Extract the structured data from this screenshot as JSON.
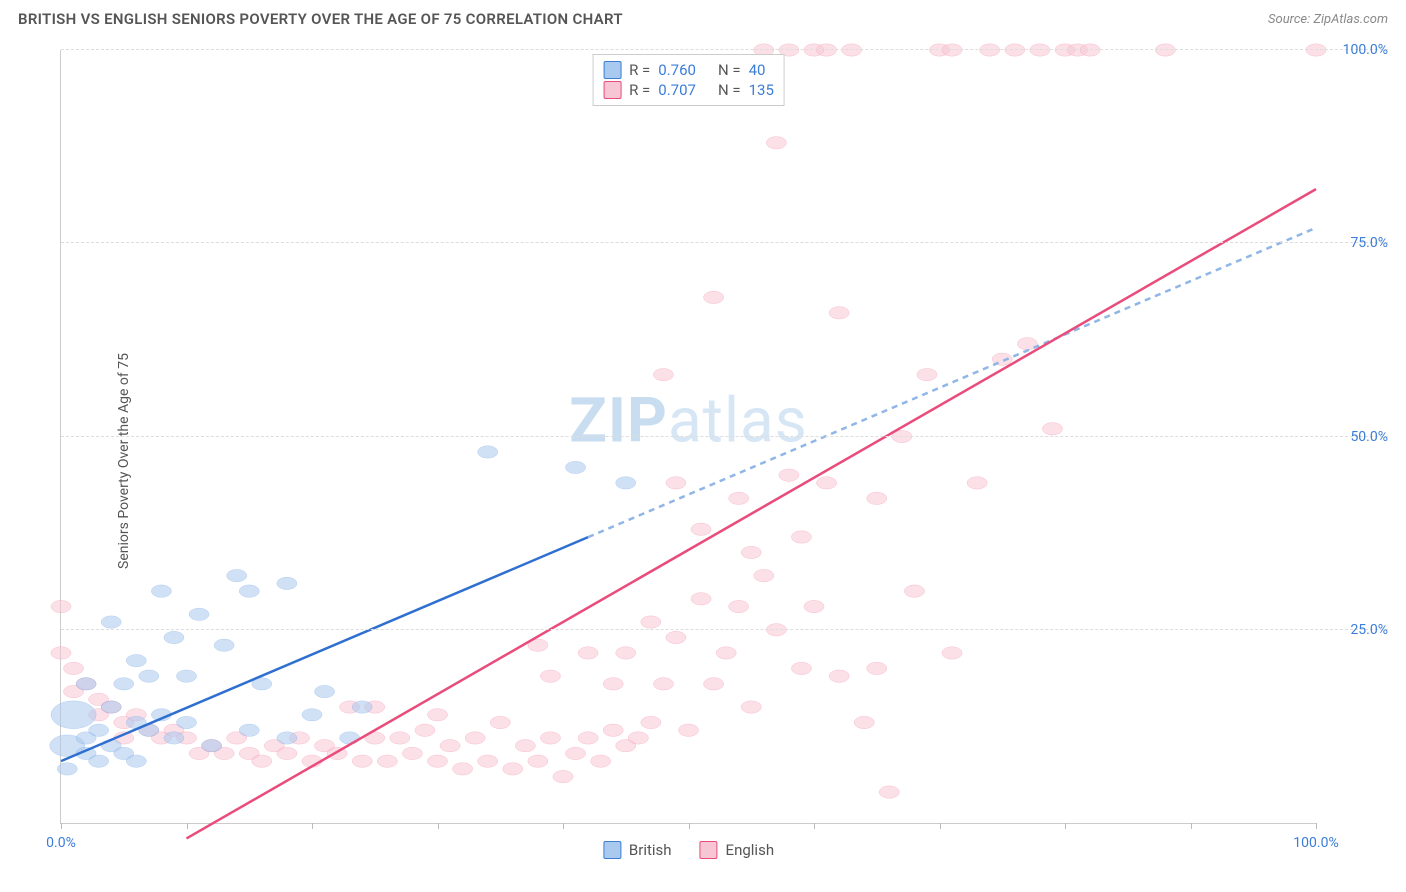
{
  "title": "BRITISH VS ENGLISH SENIORS POVERTY OVER THE AGE OF 75 CORRELATION CHART",
  "source_prefix": "Source: ",
  "source_site": "ZipAtlas.com",
  "y_axis_label": "Seniors Poverty Over the Age of 75",
  "watermark_bold": "ZIP",
  "watermark_light": "atlas",
  "colors": {
    "title_text": "#555555",
    "source_text": "#888888",
    "axis_line": "#cccccc",
    "gridline": "#dddddd",
    "tick_label_blue": "#3b7dd8",
    "series_british_fill": "#a9c9ef",
    "series_british_stroke": "#3b7dd8",
    "series_english_fill": "#f7c6d4",
    "series_english_stroke": "#e94b7b",
    "trend_british": "#2f6fd0",
    "trend_british_dash": "#8fb6e6",
    "trend_english": "#e94b7b",
    "background": "#ffffff",
    "watermark": "#d6e6f5"
  },
  "chart": {
    "type": "scatter",
    "xlim": [
      0,
      100
    ],
    "ylim": [
      0,
      100
    ],
    "x_ticks": [
      0,
      10,
      20,
      30,
      40,
      50,
      60,
      70,
      80,
      90,
      100
    ],
    "x_tick_labels_shown": {
      "0": "0.0%",
      "100": "100.0%"
    },
    "y_gridlines": [
      25,
      50,
      75,
      100
    ],
    "y_gridline_labels": {
      "25": "25.0%",
      "50": "50.0%",
      "75": "75.0%",
      "100": "100.0%"
    },
    "marker_radius_default": 8,
    "marker_opacity": 0.55,
    "line_width_trend": 2.5
  },
  "legend_top": {
    "r_label": "R =",
    "n_label": "N =",
    "rows": [
      {
        "series": "british",
        "r": "0.760",
        "n": "40"
      },
      {
        "series": "english",
        "r": "0.707",
        "n": "135"
      }
    ]
  },
  "legend_bottom": [
    {
      "series": "british",
      "label": "British"
    },
    {
      "series": "english",
      "label": "English"
    }
  ],
  "series": {
    "british": {
      "trend": {
        "x1": 0,
        "y1": 8,
        "x2": 100,
        "y2": 77,
        "style": "solid-then-dash",
        "dash_from_x": 42
      },
      "points": [
        {
          "x": 1,
          "y": 14,
          "r": 18
        },
        {
          "x": 0.5,
          "y": 10,
          "r": 14
        },
        {
          "x": 0.5,
          "y": 7
        },
        {
          "x": 2,
          "y": 9
        },
        {
          "x": 2,
          "y": 11
        },
        {
          "x": 3,
          "y": 8
        },
        {
          "x": 3,
          "y": 12
        },
        {
          "x": 4,
          "y": 10
        },
        {
          "x": 4,
          "y": 15
        },
        {
          "x": 5,
          "y": 18
        },
        {
          "x": 5,
          "y": 9
        },
        {
          "x": 6,
          "y": 8
        },
        {
          "x": 6,
          "y": 21
        },
        {
          "x": 7,
          "y": 12
        },
        {
          "x": 7,
          "y": 19
        },
        {
          "x": 8,
          "y": 30
        },
        {
          "x": 8,
          "y": 14
        },
        {
          "x": 9,
          "y": 11
        },
        {
          "x": 9,
          "y": 24
        },
        {
          "x": 10,
          "y": 13
        },
        {
          "x": 10,
          "y": 19
        },
        {
          "x": 11,
          "y": 27
        },
        {
          "x": 12,
          "y": 10
        },
        {
          "x": 13,
          "y": 23
        },
        {
          "x": 14,
          "y": 32
        },
        {
          "x": 15,
          "y": 12
        },
        {
          "x": 15,
          "y": 30
        },
        {
          "x": 16,
          "y": 18
        },
        {
          "x": 18,
          "y": 11
        },
        {
          "x": 18,
          "y": 31
        },
        {
          "x": 20,
          "y": 14
        },
        {
          "x": 21,
          "y": 17
        },
        {
          "x": 23,
          "y": 11
        },
        {
          "x": 24,
          "y": 15
        },
        {
          "x": 34,
          "y": 48
        },
        {
          "x": 41,
          "y": 46
        },
        {
          "x": 45,
          "y": 44
        },
        {
          "x": 4,
          "y": 26
        },
        {
          "x": 2,
          "y": 18
        },
        {
          "x": 6,
          "y": 13
        }
      ]
    },
    "english": {
      "trend": {
        "x1": 10,
        "y1": -2,
        "x2": 100,
        "y2": 82,
        "style": "solid"
      },
      "points": [
        {
          "x": 0,
          "y": 28
        },
        {
          "x": 0,
          "y": 22
        },
        {
          "x": 1,
          "y": 20
        },
        {
          "x": 1,
          "y": 17
        },
        {
          "x": 2,
          "y": 18
        },
        {
          "x": 3,
          "y": 16
        },
        {
          "x": 3,
          "y": 14
        },
        {
          "x": 4,
          "y": 15
        },
        {
          "x": 5,
          "y": 13
        },
        {
          "x": 5,
          "y": 11
        },
        {
          "x": 6,
          "y": 14
        },
        {
          "x": 7,
          "y": 12
        },
        {
          "x": 8,
          "y": 11
        },
        {
          "x": 9,
          "y": 12
        },
        {
          "x": 10,
          "y": 11
        },
        {
          "x": 11,
          "y": 9
        },
        {
          "x": 12,
          "y": 10
        },
        {
          "x": 13,
          "y": 9
        },
        {
          "x": 14,
          "y": 11
        },
        {
          "x": 15,
          "y": 9
        },
        {
          "x": 16,
          "y": 8
        },
        {
          "x": 17,
          "y": 10
        },
        {
          "x": 18,
          "y": 9
        },
        {
          "x": 19,
          "y": 11
        },
        {
          "x": 20,
          "y": 8
        },
        {
          "x": 21,
          "y": 10
        },
        {
          "x": 22,
          "y": 9
        },
        {
          "x": 23,
          "y": 15
        },
        {
          "x": 24,
          "y": 8
        },
        {
          "x": 25,
          "y": 11
        },
        {
          "x": 25,
          "y": 15
        },
        {
          "x": 26,
          "y": 8
        },
        {
          "x": 27,
          "y": 11
        },
        {
          "x": 28,
          "y": 9
        },
        {
          "x": 29,
          "y": 12
        },
        {
          "x": 30,
          "y": 8
        },
        {
          "x": 30,
          "y": 14
        },
        {
          "x": 31,
          "y": 10
        },
        {
          "x": 32,
          "y": 7
        },
        {
          "x": 33,
          "y": 11
        },
        {
          "x": 34,
          "y": 8
        },
        {
          "x": 35,
          "y": 13
        },
        {
          "x": 36,
          "y": 7
        },
        {
          "x": 37,
          "y": 10
        },
        {
          "x": 38,
          "y": 8
        },
        {
          "x": 39,
          "y": 11
        },
        {
          "x": 40,
          "y": 6
        },
        {
          "x": 41,
          "y": 9
        },
        {
          "x": 42,
          "y": 11
        },
        {
          "x": 43,
          "y": 8
        },
        {
          "x": 44,
          "y": 12
        },
        {
          "x": 45,
          "y": 10
        },
        {
          "x": 38,
          "y": 23
        },
        {
          "x": 39,
          "y": 19
        },
        {
          "x": 42,
          "y": 22
        },
        {
          "x": 44,
          "y": 18
        },
        {
          "x": 45,
          "y": 22
        },
        {
          "x": 46,
          "y": 11
        },
        {
          "x": 47,
          "y": 13
        },
        {
          "x": 47,
          "y": 26
        },
        {
          "x": 48,
          "y": 18
        },
        {
          "x": 48,
          "y": 58
        },
        {
          "x": 49,
          "y": 24
        },
        {
          "x": 49,
          "y": 44
        },
        {
          "x": 50,
          "y": 12
        },
        {
          "x": 51,
          "y": 29
        },
        {
          "x": 51,
          "y": 38
        },
        {
          "x": 52,
          "y": 18
        },
        {
          "x": 52,
          "y": 68
        },
        {
          "x": 53,
          "y": 22
        },
        {
          "x": 54,
          "y": 28
        },
        {
          "x": 54,
          "y": 42
        },
        {
          "x": 55,
          "y": 15
        },
        {
          "x": 55,
          "y": 35
        },
        {
          "x": 56,
          "y": 32
        },
        {
          "x": 56,
          "y": 100
        },
        {
          "x": 57,
          "y": 88
        },
        {
          "x": 57,
          "y": 25
        },
        {
          "x": 58,
          "y": 100
        },
        {
          "x": 58,
          "y": 45
        },
        {
          "x": 59,
          "y": 20
        },
        {
          "x": 59,
          "y": 37
        },
        {
          "x": 60,
          "y": 28
        },
        {
          "x": 60,
          "y": 100
        },
        {
          "x": 61,
          "y": 100
        },
        {
          "x": 61,
          "y": 44
        },
        {
          "x": 62,
          "y": 19
        },
        {
          "x": 62,
          "y": 66
        },
        {
          "x": 63,
          "y": 100
        },
        {
          "x": 64,
          "y": 13
        },
        {
          "x": 65,
          "y": 42
        },
        {
          "x": 65,
          "y": 20
        },
        {
          "x": 66,
          "y": 4
        },
        {
          "x": 67,
          "y": 50
        },
        {
          "x": 68,
          "y": 30
        },
        {
          "x": 69,
          "y": 58
        },
        {
          "x": 70,
          "y": 100
        },
        {
          "x": 71,
          "y": 100
        },
        {
          "x": 71,
          "y": 22
        },
        {
          "x": 73,
          "y": 44
        },
        {
          "x": 74,
          "y": 100
        },
        {
          "x": 75,
          "y": 60
        },
        {
          "x": 76,
          "y": 100
        },
        {
          "x": 77,
          "y": 62
        },
        {
          "x": 78,
          "y": 100
        },
        {
          "x": 79,
          "y": 51
        },
        {
          "x": 80,
          "y": 100
        },
        {
          "x": 81,
          "y": 100
        },
        {
          "x": 82,
          "y": 100
        },
        {
          "x": 88,
          "y": 100
        },
        {
          "x": 100,
          "y": 100
        }
      ]
    }
  }
}
